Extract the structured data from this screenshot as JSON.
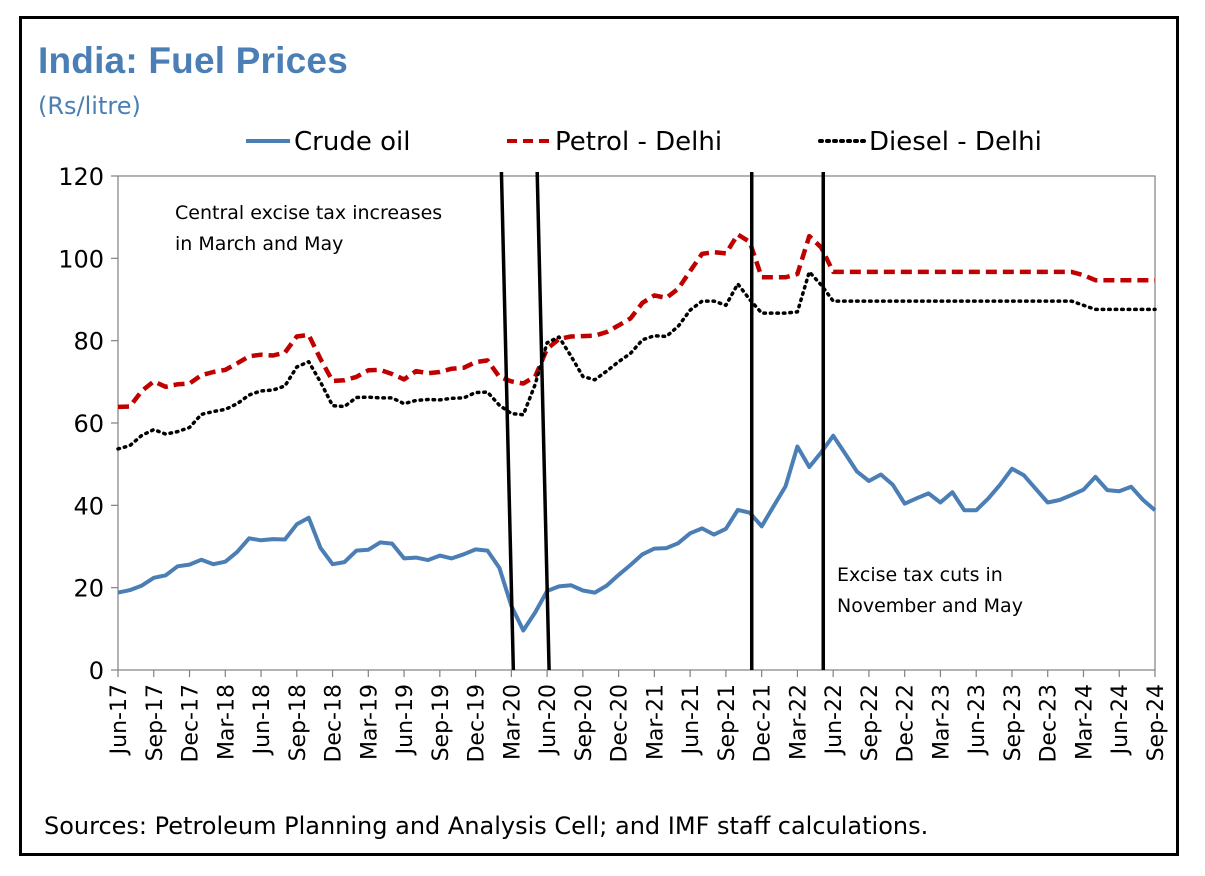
{
  "chart_data": {
    "type": "line",
    "title": "India: Fuel Prices",
    "subtitle": "(Rs/litre)",
    "source": "Sources: Petroleum Planning and Analysis Cell; and IMF staff calculations.",
    "ylim": [
      0,
      120
    ],
    "yticks": [
      0,
      20,
      40,
      60,
      80,
      100,
      120
    ],
    "xticks": [
      "Jun-17",
      "Sep-17",
      "Dec-17",
      "Mar-18",
      "Jun-18",
      "Sep-18",
      "Dec-18",
      "Mar-19",
      "Jun-19",
      "Sep-19",
      "Dec-19",
      "Mar-20",
      "Jun-20",
      "Sep-20",
      "Dec-20",
      "Mar-21",
      "Jun-21",
      "Sep-21",
      "Dec-21",
      "Mar-22",
      "Jun-22",
      "Sep-22",
      "Dec-22",
      "Mar-23",
      "Jun-23",
      "Sep-23",
      "Dec-23",
      "Mar-24",
      "Jun-24",
      "Sep-24"
    ],
    "x": [
      "Jun-17",
      "Jul-17",
      "Aug-17",
      "Sep-17",
      "Oct-17",
      "Nov-17",
      "Dec-17",
      "Jan-18",
      "Feb-18",
      "Mar-18",
      "Apr-18",
      "May-18",
      "Jun-18",
      "Jul-18",
      "Aug-18",
      "Sep-18",
      "Oct-18",
      "Nov-18",
      "Dec-18",
      "Jan-19",
      "Feb-19",
      "Mar-19",
      "Apr-19",
      "May-19",
      "Jun-19",
      "Jul-19",
      "Aug-19",
      "Sep-19",
      "Oct-19",
      "Nov-19",
      "Dec-19",
      "Jan-20",
      "Feb-20",
      "Mar-20",
      "Apr-20",
      "May-20",
      "Jun-20",
      "Jul-20",
      "Aug-20",
      "Sep-20",
      "Oct-20",
      "Nov-20",
      "Dec-20",
      "Jan-21",
      "Feb-21",
      "Mar-21",
      "Apr-21",
      "May-21",
      "Jun-21",
      "Jul-21",
      "Aug-21",
      "Sep-21",
      "Oct-21",
      "Nov-21",
      "Dec-21",
      "Jan-22",
      "Feb-22",
      "Mar-22",
      "Apr-22",
      "May-22",
      "Jun-22",
      "Jul-22",
      "Aug-22",
      "Sep-22",
      "Oct-22",
      "Nov-22",
      "Dec-22",
      "Jan-23",
      "Feb-23",
      "Mar-23",
      "Apr-23",
      "May-23",
      "Jun-23",
      "Jul-23",
      "Aug-23",
      "Sep-23",
      "Oct-23",
      "Nov-23",
      "Dec-23",
      "Jan-24",
      "Feb-24",
      "Mar-24",
      "Apr-24",
      "May-24",
      "Jun-24",
      "Jul-24",
      "Aug-24",
      "Sep-24"
    ],
    "series": [
      {
        "name": "Crude oil",
        "color": "#4a7eb5",
        "style": "solid",
        "values": [
          18.8,
          19.4,
          20.5,
          22.4,
          23.0,
          25.2,
          25.6,
          26.8,
          25.7,
          26.3,
          28.7,
          32.0,
          31.5,
          31.8,
          31.7,
          35.4,
          37.0,
          29.6,
          25.7,
          26.2,
          29.0,
          29.2,
          31.0,
          30.7,
          27.1,
          27.3,
          26.7,
          27.8,
          27.1,
          28.1,
          29.3,
          29.0,
          24.8,
          15.6,
          9.6,
          14.0,
          19.2,
          20.3,
          20.6,
          19.3,
          18.8,
          20.5,
          23.1,
          25.5,
          28.1,
          29.5,
          29.6,
          30.8,
          33.2,
          34.4,
          32.9,
          34.3,
          38.9,
          38.2,
          34.9,
          39.8,
          44.6,
          54.3,
          49.3,
          52.9,
          56.9,
          52.6,
          48.2,
          45.9,
          47.5,
          45.0,
          40.4,
          41.7,
          42.9,
          40.7,
          43.2,
          38.8,
          38.8,
          41.6,
          45.0,
          48.9,
          47.3,
          44.0,
          40.7,
          41.3,
          42.5,
          43.8,
          46.9,
          43.7,
          43.4,
          44.5,
          41.3,
          38.8
        ]
      },
      {
        "name": "Petrol - Delhi",
        "color": "#c00000",
        "style": "dashed",
        "values": [
          63.9,
          64.0,
          67.8,
          70.1,
          68.8,
          69.4,
          69.6,
          71.6,
          72.4,
          72.9,
          74.5,
          76.2,
          76.6,
          76.4,
          77.1,
          81.0,
          81.4,
          75.5,
          70.2,
          70.4,
          71.2,
          72.8,
          72.9,
          71.9,
          70.6,
          72.6,
          72.1,
          72.4,
          73.2,
          73.4,
          74.8,
          75.2,
          71.2,
          70.1,
          69.6,
          71.3,
          78.0,
          80.4,
          81.0,
          81.1,
          81.2,
          82.1,
          83.7,
          85.4,
          89.2,
          91.0,
          90.4,
          92.6,
          96.9,
          101.1,
          101.5,
          101.2,
          105.8,
          104.0,
          95.4,
          95.4,
          95.4,
          96.2,
          105.4,
          102.6,
          96.7,
          96.7,
          96.7,
          96.7,
          96.7,
          96.7,
          96.7,
          96.7,
          96.7,
          96.7,
          96.7,
          96.7,
          96.7,
          96.7,
          96.7,
          96.7,
          96.7,
          96.7,
          96.7,
          96.7,
          96.7,
          95.9,
          94.7,
          94.7,
          94.7,
          94.7,
          94.7,
          94.7
        ]
      },
      {
        "name": "Diesel - Delhi",
        "color": "#000000",
        "style": "dotted",
        "values": [
          53.7,
          54.5,
          57.0,
          58.4,
          57.3,
          57.9,
          58.9,
          62.1,
          62.8,
          63.3,
          64.7,
          66.8,
          67.8,
          68.0,
          69.0,
          73.6,
          74.9,
          69.9,
          64.2,
          64.0,
          66.2,
          66.3,
          66.1,
          66.1,
          64.7,
          65.5,
          65.7,
          65.6,
          66.0,
          66.1,
          67.4,
          67.5,
          64.3,
          62.3,
          62.0,
          69.4,
          79.5,
          80.9,
          76.3,
          71.3,
          70.5,
          72.6,
          74.9,
          76.9,
          80.2,
          81.2,
          81.0,
          83.5,
          87.4,
          89.6,
          89.6,
          88.6,
          93.8,
          90.0,
          86.7,
          86.7,
          86.7,
          87.0,
          96.7,
          93.5,
          89.6,
          89.6,
          89.6,
          89.6,
          89.6,
          89.6,
          89.6,
          89.6,
          89.6,
          89.6,
          89.6,
          89.6,
          89.6,
          89.6,
          89.6,
          89.6,
          89.6,
          89.6,
          89.6,
          89.6,
          89.6,
          88.6,
          87.6,
          87.6,
          87.6,
          87.6,
          87.6,
          87.6
        ]
      }
    ],
    "vlines": [
      {
        "top": "Feb-20",
        "bottom": "Mar-20"
      },
      {
        "top": "May-20",
        "bottom": "Jun-20"
      },
      {
        "top": "Nov-21",
        "bottom": "Nov-21"
      },
      {
        "top": "May-22",
        "bottom": "May-22"
      }
    ],
    "annotations": [
      {
        "lines": [
          "Central excise tax increases",
          "in March and May"
        ]
      },
      {
        "lines": [
          "Excise tax cuts in",
          "November and May"
        ]
      }
    ],
    "legend_placement": "top",
    "grid": false
  }
}
